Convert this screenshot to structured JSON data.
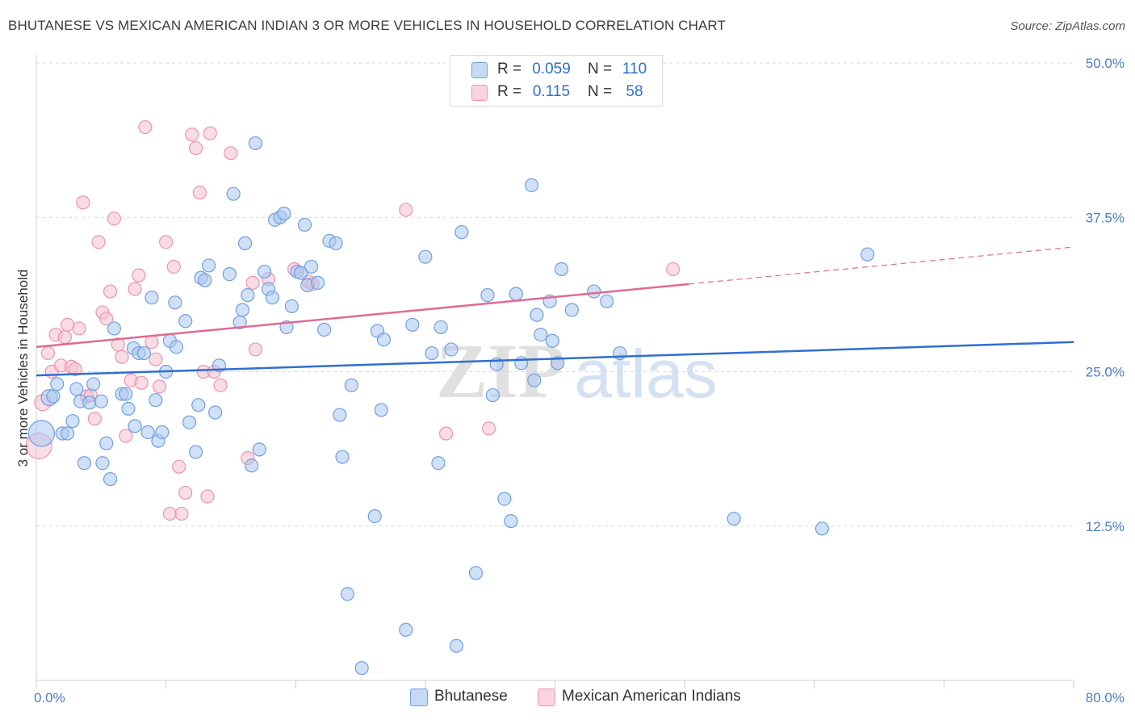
{
  "title": "BHUTANESE VS MEXICAN AMERICAN INDIAN 3 OR MORE VEHICLES IN HOUSEHOLD CORRELATION CHART",
  "source": "Source: ZipAtlas.com",
  "watermark": {
    "zip": "ZIP",
    "atlas": "atlas"
  },
  "colors": {
    "blue_fill": "#a9c6f0",
    "blue_stroke": "#6f9fe0",
    "blue_line": "#2f6fcf",
    "pink_fill": "#f6bfd0",
    "pink_stroke": "#ec93b1",
    "pink_line": "#e06a95",
    "axis_text": "#4a7cc8",
    "grid": "#d9d9d9"
  },
  "legend": {
    "rows": [
      {
        "r_label": "R =",
        "r_value": "0.059",
        "n_label": "N =",
        "n_value": "110"
      },
      {
        "r_label": "R =",
        "r_value": "0.115",
        "n_label": "N =",
        "n_value": "58"
      }
    ]
  },
  "chart_data": {
    "type": "scatter",
    "title": "BHUTANESE VS MEXICAN AMERICAN INDIAN 3 OR MORE VEHICLES IN HOUSEHOLD CORRELATION CHART",
    "xlabel": "",
    "ylabel": "3 or more Vehicles in Household",
    "xlim": [
      0,
      80
    ],
    "ylim": [
      0,
      50
    ],
    "x_tick_labels": [
      "0.0%",
      "80.0%"
    ],
    "y_ticks": [
      12.5,
      25.0,
      37.5,
      50.0
    ],
    "y_tick_labels": [
      "12.5%",
      "25.0%",
      "37.5%",
      "50.0%"
    ],
    "grid": true,
    "legend_position": "top-center",
    "series": [
      {
        "name": "Bhutanese",
        "color": "#a9c6f0",
        "trend": {
          "x0": 0,
          "y0": 24.7,
          "x1": 80,
          "y1": 27.4,
          "solid_to": 80
        },
        "points": [
          [
            0.4,
            20.0,
            16
          ],
          [
            1.0,
            22.9,
            10
          ],
          [
            1.3,
            23.0,
            8
          ],
          [
            1.6,
            24.0,
            8
          ],
          [
            2.0,
            20.0,
            8
          ],
          [
            2.4,
            20.0,
            8
          ],
          [
            2.8,
            21.0,
            8
          ],
          [
            3.1,
            23.6,
            8
          ],
          [
            3.4,
            22.6,
            8
          ],
          [
            3.7,
            17.6,
            8
          ],
          [
            4.1,
            22.5,
            8
          ],
          [
            4.4,
            24.0,
            8
          ],
          [
            5.0,
            22.6,
            8
          ],
          [
            5.1,
            17.6,
            8
          ],
          [
            5.4,
            19.2,
            8
          ],
          [
            5.7,
            16.3,
            8
          ],
          [
            6.0,
            28.5,
            8
          ],
          [
            6.6,
            23.2,
            8
          ],
          [
            6.9,
            23.2,
            8
          ],
          [
            7.1,
            22.0,
            8
          ],
          [
            7.5,
            26.9,
            8
          ],
          [
            7.6,
            20.6,
            8
          ],
          [
            7.9,
            26.5,
            8
          ],
          [
            8.3,
            26.5,
            8
          ],
          [
            8.6,
            20.1,
            8
          ],
          [
            8.9,
            31.0,
            8
          ],
          [
            9.2,
            22.7,
            8
          ],
          [
            9.4,
            19.4,
            8
          ],
          [
            9.7,
            20.1,
            8
          ],
          [
            10.0,
            25.0,
            8
          ],
          [
            10.3,
            27.5,
            8
          ],
          [
            10.7,
            30.6,
            8
          ],
          [
            10.8,
            27.0,
            8
          ],
          [
            11.5,
            29.1,
            8
          ],
          [
            11.8,
            20.9,
            8
          ],
          [
            12.3,
            18.5,
            8
          ],
          [
            12.5,
            22.3,
            8
          ],
          [
            12.7,
            32.6,
            8
          ],
          [
            13.0,
            32.4,
            8
          ],
          [
            13.3,
            33.6,
            8
          ],
          [
            13.8,
            21.7,
            8
          ],
          [
            14.1,
            25.5,
            8
          ],
          [
            14.9,
            32.9,
            8
          ],
          [
            15.2,
            39.4,
            8
          ],
          [
            15.7,
            29.0,
            8
          ],
          [
            15.9,
            30.0,
            8
          ],
          [
            16.1,
            35.4,
            8
          ],
          [
            16.3,
            31.2,
            8
          ],
          [
            16.6,
            17.4,
            8
          ],
          [
            16.9,
            43.5,
            8
          ],
          [
            17.2,
            18.7,
            8
          ],
          [
            17.6,
            33.1,
            8
          ],
          [
            17.9,
            31.7,
            8
          ],
          [
            18.2,
            31.0,
            8
          ],
          [
            18.4,
            37.3,
            8
          ],
          [
            18.8,
            37.5,
            8
          ],
          [
            19.1,
            37.8,
            8
          ],
          [
            19.3,
            28.6,
            8
          ],
          [
            19.7,
            30.3,
            8
          ],
          [
            20.1,
            33.1,
            8
          ],
          [
            20.4,
            33.0,
            8
          ],
          [
            20.7,
            36.9,
            8
          ],
          [
            20.9,
            32.0,
            8
          ],
          [
            21.2,
            33.5,
            8
          ],
          [
            21.7,
            32.2,
            8
          ],
          [
            22.2,
            28.4,
            8
          ],
          [
            22.6,
            35.6,
            8
          ],
          [
            23.1,
            35.4,
            8
          ],
          [
            23.4,
            21.5,
            8
          ],
          [
            23.6,
            18.1,
            8
          ],
          [
            24.0,
            7.0,
            8
          ],
          [
            24.3,
            23.9,
            8
          ],
          [
            25.1,
            1.0,
            8
          ],
          [
            26.1,
            13.3,
            8
          ],
          [
            26.3,
            28.3,
            8
          ],
          [
            26.6,
            21.9,
            8
          ],
          [
            26.8,
            27.6,
            8
          ],
          [
            28.5,
            4.1,
            8
          ],
          [
            29.0,
            28.8,
            8
          ],
          [
            30.0,
            34.3,
            8
          ],
          [
            30.5,
            26.5,
            8
          ],
          [
            31.0,
            17.6,
            8
          ],
          [
            31.2,
            28.6,
            8
          ],
          [
            32.0,
            26.8,
            8
          ],
          [
            32.4,
            2.8,
            8
          ],
          [
            32.8,
            36.3,
            8
          ],
          [
            33.9,
            8.7,
            8
          ],
          [
            34.8,
            31.2,
            8
          ],
          [
            35.2,
            23.1,
            8
          ],
          [
            35.5,
            25.6,
            8
          ],
          [
            36.1,
            14.7,
            8
          ],
          [
            36.6,
            12.9,
            8
          ],
          [
            37.0,
            31.3,
            8
          ],
          [
            37.4,
            25.7,
            8
          ],
          [
            38.2,
            40.1,
            8
          ],
          [
            38.4,
            24.3,
            8
          ],
          [
            38.6,
            29.6,
            8
          ],
          [
            38.9,
            28.0,
            8
          ],
          [
            39.6,
            30.7,
            8
          ],
          [
            39.8,
            27.5,
            8
          ],
          [
            40.2,
            25.7,
            8
          ],
          [
            40.5,
            33.3,
            8
          ],
          [
            41.3,
            30.0,
            8
          ],
          [
            43.0,
            31.5,
            8
          ],
          [
            44.0,
            30.7,
            8
          ],
          [
            45.0,
            26.5,
            8
          ],
          [
            53.8,
            13.1,
            8
          ],
          [
            60.6,
            12.3,
            8
          ],
          [
            64.1,
            34.5,
            8
          ]
        ]
      },
      {
        "name": "Mexican American Indians",
        "color": "#f6bfd0",
        "trend": {
          "x0": 0,
          "y0": 27.0,
          "x1": 80,
          "y1": 35.1,
          "solid_to": 50.3
        },
        "points": [
          [
            0.2,
            19.0,
            16
          ],
          [
            0.5,
            22.5,
            10
          ],
          [
            0.9,
            26.5,
            8
          ],
          [
            1.2,
            25.0,
            8
          ],
          [
            1.5,
            28.0,
            8
          ],
          [
            1.9,
            25.5,
            8
          ],
          [
            2.2,
            27.8,
            8
          ],
          [
            2.4,
            28.8,
            8
          ],
          [
            2.7,
            25.4,
            8
          ],
          [
            3.0,
            25.2,
            8
          ],
          [
            3.3,
            28.5,
            8
          ],
          [
            3.6,
            38.7,
            8
          ],
          [
            3.9,
            23.0,
            8
          ],
          [
            4.2,
            23.1,
            8
          ],
          [
            4.5,
            21.2,
            8
          ],
          [
            4.8,
            35.5,
            8
          ],
          [
            5.1,
            29.8,
            8
          ],
          [
            5.4,
            29.3,
            8
          ],
          [
            5.7,
            31.5,
            8
          ],
          [
            6.0,
            37.4,
            8
          ],
          [
            6.3,
            27.2,
            8
          ],
          [
            6.6,
            26.2,
            8
          ],
          [
            6.9,
            19.8,
            8
          ],
          [
            7.3,
            24.3,
            8
          ],
          [
            7.6,
            31.7,
            8
          ],
          [
            7.9,
            32.8,
            8
          ],
          [
            8.1,
            24.1,
            8
          ],
          [
            8.4,
            44.8,
            8
          ],
          [
            8.9,
            27.4,
            8
          ],
          [
            9.2,
            26.0,
            8
          ],
          [
            9.5,
            23.8,
            8
          ],
          [
            10.0,
            35.5,
            8
          ],
          [
            10.3,
            13.5,
            8
          ],
          [
            10.6,
            33.5,
            8
          ],
          [
            11.0,
            17.3,
            8
          ],
          [
            11.2,
            13.5,
            8
          ],
          [
            11.5,
            15.2,
            8
          ],
          [
            12.0,
            44.2,
            8
          ],
          [
            12.3,
            43.1,
            8
          ],
          [
            12.6,
            39.5,
            8
          ],
          [
            12.9,
            25.0,
            8
          ],
          [
            13.2,
            14.9,
            8
          ],
          [
            13.4,
            44.3,
            8
          ],
          [
            13.7,
            25.0,
            8
          ],
          [
            14.2,
            23.9,
            8
          ],
          [
            15.0,
            42.7,
            8
          ],
          [
            16.3,
            18.0,
            8
          ],
          [
            16.7,
            32.2,
            8
          ],
          [
            16.9,
            26.8,
            8
          ],
          [
            17.9,
            32.5,
            8
          ],
          [
            19.9,
            33.3,
            8
          ],
          [
            21.0,
            32.3,
            8
          ],
          [
            21.3,
            32.1,
            8
          ],
          [
            28.5,
            38.1,
            8
          ],
          [
            31.6,
            20.0,
            8
          ],
          [
            34.9,
            20.4,
            8
          ],
          [
            49.1,
            33.3,
            8
          ],
          [
            40.0,
            25.8,
            0
          ]
        ]
      }
    ]
  },
  "bottom_legend": [
    {
      "label": "Bhutanese"
    },
    {
      "label": "Mexican American Indians"
    }
  ]
}
